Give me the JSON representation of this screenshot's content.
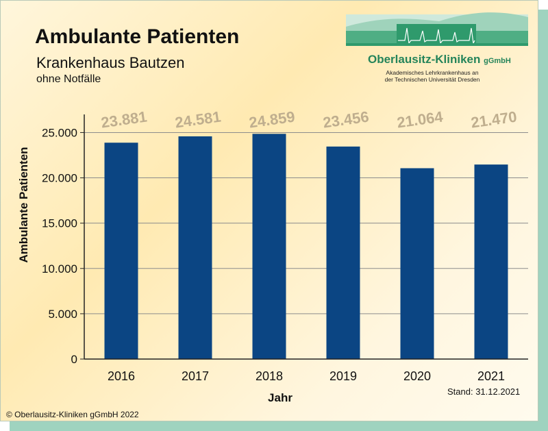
{
  "header": {
    "title": "Ambulante Patienten",
    "subtitle": "Krankenhaus Bautzen",
    "note": "ohne Notfälle"
  },
  "logo": {
    "name": "Oberlausitz-Kliniken",
    "suffix": "gGmbH",
    "line1": "Akademisches Lehrkrankenhaus an",
    "line2": "der Technischen Universität Dresden",
    "colors": {
      "brand": "#24845a",
      "light": "#bfe2d3",
      "mid": "#7fc4a4"
    }
  },
  "footer": {
    "stand": "Stand: 31.12.2021",
    "copyright": "© Oberlausitz-Kliniken gGmbH 2022"
  },
  "chart_data": {
    "type": "bar",
    "categories": [
      "2016",
      "2017",
      "2018",
      "2019",
      "2020",
      "2021"
    ],
    "values": [
      23881,
      24581,
      24859,
      23456,
      21064,
      21470
    ],
    "value_labels": [
      "23.881",
      "24.581",
      "24.859",
      "23.456",
      "21.064",
      "21.470"
    ],
    "ylabel": "Ambulante Patienten",
    "xlabel": "Jahr",
    "ylim": [
      0,
      27000
    ],
    "yticks": [
      0,
      5000,
      10000,
      15000,
      20000,
      25000
    ],
    "ytick_labels": [
      "0",
      "5.000",
      "10.000",
      "15.000",
      "20.000",
      "25.000"
    ],
    "grid": true,
    "colors": {
      "bar": "#0b4583",
      "data_label": "#bfae8e"
    }
  }
}
